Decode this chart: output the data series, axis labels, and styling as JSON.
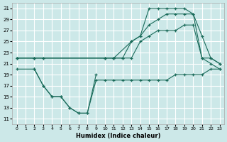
{
  "xlabel": "Humidex (Indice chaleur)",
  "bg_color": "#cce8e8",
  "grid_color": "#ffffff",
  "line_color": "#1a6b5a",
  "xlim": [
    -0.5,
    23.5
  ],
  "ylim": [
    10,
    32
  ],
  "yticks": [
    11,
    13,
    15,
    17,
    19,
    21,
    23,
    25,
    27,
    29,
    31
  ],
  "xticks": [
    0,
    1,
    2,
    3,
    4,
    5,
    6,
    7,
    8,
    9,
    10,
    11,
    12,
    13,
    14,
    15,
    16,
    17,
    18,
    19,
    20,
    21,
    22,
    23
  ],
  "lines": [
    {
      "x": [
        0,
        2,
        3,
        10,
        11,
        13,
        14,
        15,
        16,
        17,
        18,
        19,
        20,
        21,
        22,
        23
      ],
      "y": [
        22,
        22,
        22,
        22,
        22,
        25,
        26,
        31,
        31,
        31,
        31,
        31,
        30,
        22,
        22,
        21
      ]
    },
    {
      "x": [
        0,
        2,
        10,
        11,
        12,
        13,
        14,
        15,
        16,
        17,
        18,
        19,
        20,
        21,
        22,
        23
      ],
      "y": [
        22,
        22,
        22,
        22,
        22,
        25,
        26,
        28,
        29,
        30,
        30,
        30,
        30,
        26,
        22,
        21
      ]
    },
    {
      "x": [
        0,
        2,
        3,
        10,
        11,
        12,
        13,
        14,
        15,
        16,
        17,
        18,
        19,
        20,
        21,
        22,
        23
      ],
      "y": [
        22,
        22,
        22,
        22,
        22,
        22,
        22,
        25,
        26,
        27,
        27,
        27,
        28,
        28,
        22,
        21,
        20
      ]
    },
    {
      "x": [
        0,
        2,
        3,
        4,
        5,
        6,
        7,
        8,
        9,
        10,
        11,
        12,
        13,
        14,
        15,
        16,
        17,
        18,
        19,
        20,
        21,
        22,
        23
      ],
      "y": [
        20,
        20,
        17,
        15,
        15,
        13,
        12,
        12,
        18,
        18,
        18,
        18,
        18,
        18,
        18,
        18,
        18,
        19,
        19,
        19,
        19,
        20,
        20
      ]
    },
    {
      "x": [
        2,
        3,
        4,
        5,
        6,
        7,
        8,
        9
      ],
      "y": [
        20,
        17,
        15,
        15,
        13,
        12,
        12,
        19
      ]
    }
  ]
}
